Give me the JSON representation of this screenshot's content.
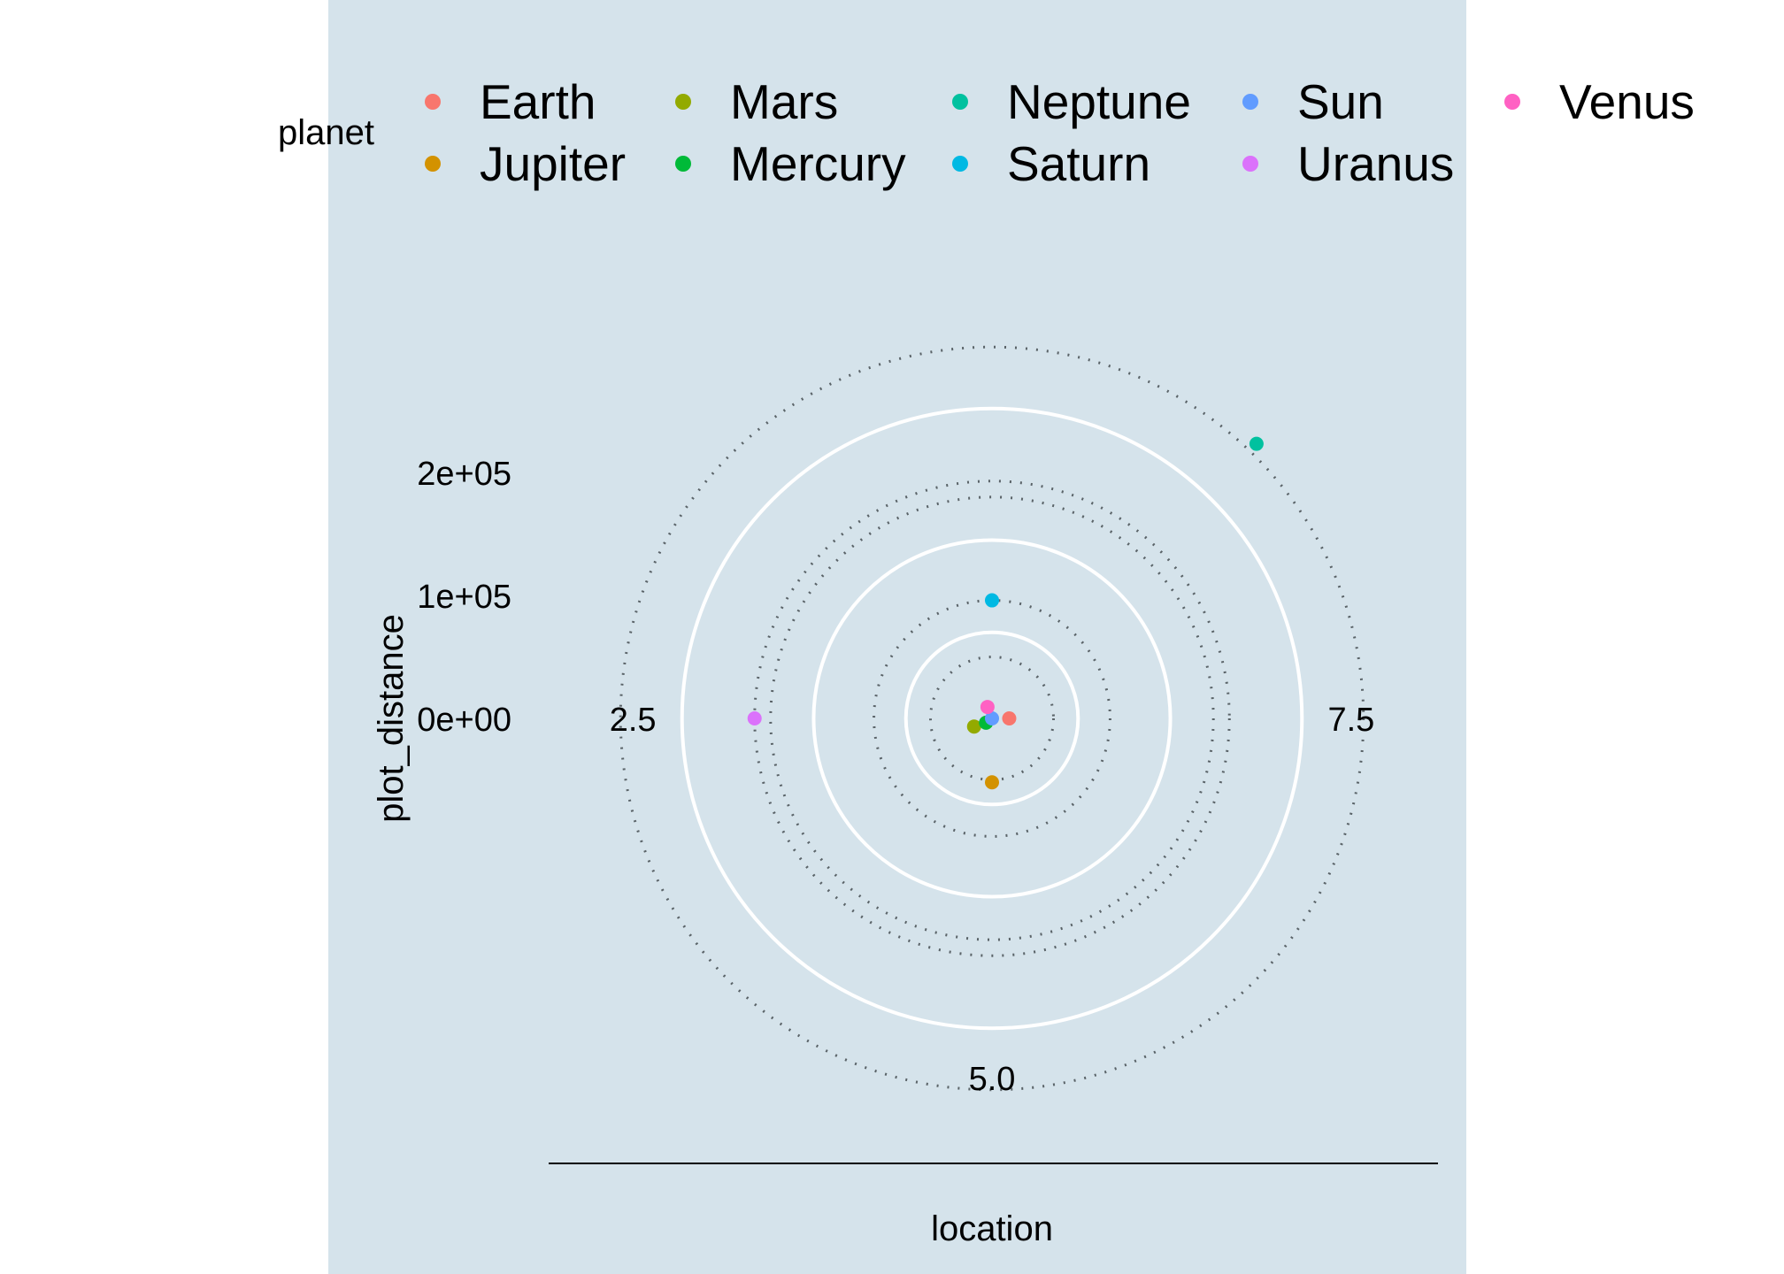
{
  "chart_data": {
    "type": "scatter",
    "coord": "polar",
    "x_variable": "location",
    "y_variable": "plot_distance",
    "xlabel": "location",
    "ylabel": "plot_distance",
    "legend_title": "planet",
    "legend_position": "top",
    "x_range": [
      0,
      10
    ],
    "ylim": [
      0,
      325000
    ],
    "theta_ticks": [
      {
        "value": 2.5,
        "label": "2.5"
      },
      {
        "value": 5.0,
        "label": "5.0"
      },
      {
        "value": 7.5,
        "label": "7.5"
      }
    ],
    "r_ticks": [
      {
        "value": 0,
        "label": "0e+00"
      },
      {
        "value": 100000,
        "label": "1e+05"
      },
      {
        "value": 200000,
        "label": "2e+05"
      }
    ],
    "series": [
      {
        "name": "Earth",
        "color": "#F8766D",
        "x": 7.5,
        "y": 14000
      },
      {
        "name": "Jupiter",
        "color": "#D39200",
        "x": 5.0,
        "y": 52000
      },
      {
        "name": "Mars",
        "color": "#93AA00",
        "x": 3.18,
        "y": 16000
      },
      {
        "name": "Mercury",
        "color": "#00BA38",
        "x": 3.5,
        "y": 6000
      },
      {
        "name": "Neptune",
        "color": "#00C19F",
        "x": 8.78,
        "y": 310000
      },
      {
        "name": "Saturn",
        "color": "#00B9E3",
        "x": 0.0,
        "y": 96000
      },
      {
        "name": "Sun",
        "color": "#619CFF",
        "x": 0.0,
        "y": 0
      },
      {
        "name": "Uranus",
        "color": "#DB72FB",
        "x": 2.5,
        "y": 193000
      },
      {
        "name": "Venus",
        "color": "#FF61C3",
        "x": 0.6,
        "y": 10000
      }
    ],
    "orbit_radii": [
      {
        "planet": "Earth",
        "r": 50000
      },
      {
        "planet": "Saturn",
        "r": 96000
      },
      {
        "planet": "Jupiter",
        "r": 180000
      },
      {
        "planet": "Uranus",
        "r": 193000
      },
      {
        "planet": "Neptune",
        "r": 302000
      }
    ],
    "grid": true
  }
}
